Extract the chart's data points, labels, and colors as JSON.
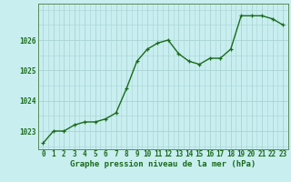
{
  "x": [
    0,
    1,
    2,
    3,
    4,
    5,
    6,
    7,
    8,
    9,
    10,
    11,
    12,
    13,
    14,
    15,
    16,
    17,
    18,
    19,
    20,
    21,
    22,
    23
  ],
  "y": [
    1022.6,
    1023.0,
    1023.0,
    1023.2,
    1023.3,
    1023.3,
    1023.4,
    1023.6,
    1024.4,
    1025.3,
    1025.7,
    1025.9,
    1026.0,
    1025.55,
    1025.3,
    1025.2,
    1025.4,
    1025.4,
    1025.7,
    1026.8,
    1026.8,
    1026.8,
    1026.7,
    1026.5
  ],
  "line_color": "#1a6b1a",
  "marker_color": "#1a6b1a",
  "bg_color": "#c8eef0",
  "grid_color": "#aad4d4",
  "axis_label_color": "#1a6b1a",
  "xlabel": "Graphe pression niveau de la mer (hPa)",
  "ylim_min": 1022.4,
  "ylim_max": 1027.2,
  "yticks": [
    1023,
    1024,
    1025,
    1026
  ],
  "xticks": [
    0,
    1,
    2,
    3,
    4,
    5,
    6,
    7,
    8,
    9,
    10,
    11,
    12,
    13,
    14,
    15,
    16,
    17,
    18,
    19,
    20,
    21,
    22,
    23
  ],
  "xlabel_fontsize": 6.5,
  "tick_fontsize": 5.5,
  "line_width": 1.0,
  "marker_size": 2.5
}
